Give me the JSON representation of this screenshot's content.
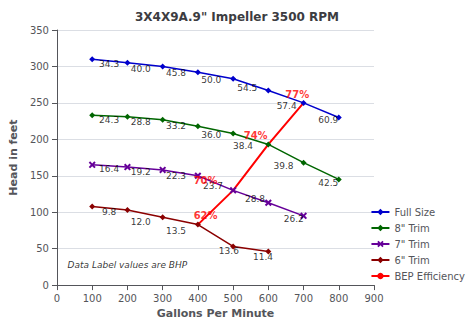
{
  "chart_data": {
    "type": "line",
    "title": "3X4X9A.9\" Impeller 3500 RPM",
    "xlabel": "Gallons Per Minute",
    "ylabel": "Head in feet",
    "xlim": [
      0,
      900
    ],
    "ylim": [
      0,
      350
    ],
    "xticks": [
      0,
      100,
      200,
      300,
      400,
      500,
      600,
      700,
      800,
      900
    ],
    "yticks": [
      0,
      50,
      100,
      150,
      200,
      250,
      300,
      350
    ],
    "grid": "y",
    "legend": "lower right",
    "annotation": {
      "text": "Data Label values are BHP",
      "x": 30,
      "y": 22
    },
    "series": [
      {
        "name": "Full Size",
        "color": "#0000CC",
        "marker": "diamond",
        "x": [
          100,
          200,
          300,
          400,
          500,
          600,
          700,
          800
        ],
        "values": [
          310,
          305,
          300,
          292,
          283,
          267,
          250,
          230
        ],
        "bhp_labels": {
          "labels": [
            "34.3",
            "40.0",
            "45.8",
            "50.0",
            "54.5",
            "57.4",
            "60.9"
          ],
          "x": [
            148,
            238,
            338,
            438,
            540,
            652,
            770
          ],
          "y": [
            297,
            291,
            285,
            275,
            264,
            240,
            220
          ]
        }
      },
      {
        "name": "8\" Trim",
        "color": "#006600",
        "marker": "diamond",
        "x": [
          100,
          200,
          300,
          400,
          500,
          600,
          700,
          800
        ],
        "values": [
          233,
          231,
          227,
          218,
          208,
          193,
          168,
          145
        ],
        "bhp_labels": {
          "labels": [
            "24.3",
            "28.8",
            "33.2",
            "36.0",
            "38.4",
            "39.8",
            "42.5"
          ],
          "x": [
            148,
            238,
            338,
            438,
            528,
            643,
            770
          ],
          "y": [
            220,
            217,
            212,
            200,
            184,
            157,
            134
          ]
        }
      },
      {
        "name": "7\" Trim",
        "color": "#660099",
        "marker": "x",
        "x": [
          100,
          200,
          300,
          400,
          500,
          600,
          700
        ],
        "values": [
          165,
          162,
          158,
          150,
          130,
          113,
          95
        ],
        "bhp_labels": {
          "labels": [
            "16.4",
            "19.2",
            "22.3",
            "23.7",
            "28.8",
            "26.2"
          ],
          "x": [
            148,
            238,
            338,
            443,
            562,
            672
          ],
          "y": [
            153,
            149,
            143,
            130,
            112,
            85
          ]
        }
      },
      {
        "name": "6\" Trim",
        "color": "#8B0000",
        "marker": "diamond",
        "x": [
          100,
          200,
          300,
          400,
          500,
          600
        ],
        "values": [
          108,
          103,
          93,
          83,
          53,
          46
        ],
        "bhp_labels": {
          "labels": [
            "9.8",
            "12.0",
            "13.5",
            "13.6",
            "11.4"
          ],
          "x": [
            148,
            238,
            338,
            488,
            585
          ],
          "y": [
            94,
            80,
            68,
            40,
            32
          ]
        }
      },
      {
        "name": "BEP Efficiency",
        "color": "#FF0000",
        "marker": "none",
        "x": [
          400,
          500,
          600,
          700
        ],
        "values": [
          83,
          130,
          193,
          250
        ],
        "efficiency_labels": {
          "labels": [
            "62%",
            "70%",
            "74%",
            "77%"
          ],
          "x": [
            388,
            388,
            530,
            648
          ],
          "y": [
            88,
            137,
            198,
            254
          ]
        }
      }
    ]
  }
}
